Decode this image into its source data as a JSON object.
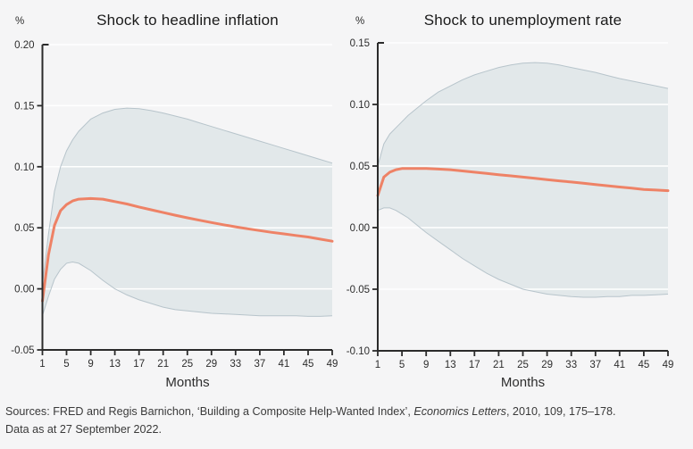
{
  "colors": {
    "background": "#f5f5f6",
    "band_fill": "#e2e8ea",
    "band_edge": "#b7c4cb",
    "line": "#ee8266",
    "axis": "#2b2b2b",
    "gridline": "#ffffff",
    "title_text": "#1a1a1a",
    "tick_text": "#2d2d2d",
    "footer_text": "#3a3a3a"
  },
  "footer": {
    "line1_prefix": "Sources: FRED and Regis Barnichon, ‘Building a Composite Help-Wanted Index’, ",
    "line1_italic": "Economics Letters",
    "line1_suffix": ", 2010, 109, 175–178.",
    "line2": "Data as at 27 September 2022."
  },
  "chart_data": [
    {
      "type": "line",
      "title": "Shock to headline inflation",
      "unit": "%",
      "xlabel": "Months",
      "xlim": [
        1,
        49
      ],
      "ylim": [
        -0.05,
        0.2
      ],
      "grid": true,
      "legend_position": "none",
      "xticks": [
        1,
        5,
        9,
        13,
        17,
        21,
        25,
        29,
        33,
        37,
        41,
        45,
        49
      ],
      "ytick_values": [
        0.2,
        0.15,
        0.1,
        0.05,
        0.0,
        -0.05
      ],
      "ytick_labels": [
        "0.20",
        "0.15",
        "0.10",
        "0.05",
        "0.00",
        "-0.05"
      ],
      "x": [
        1,
        2,
        3,
        4,
        5,
        6,
        7,
        9,
        11,
        13,
        15,
        17,
        19,
        21,
        23,
        25,
        27,
        29,
        31,
        33,
        35,
        37,
        39,
        41,
        43,
        45,
        47,
        49
      ],
      "series": [
        {
          "name": "median response",
          "values": [
            -0.01,
            0.028,
            0.052,
            0.064,
            0.069,
            0.072,
            0.0735,
            0.074,
            0.0735,
            0.0715,
            0.0695,
            0.067,
            0.0648,
            0.0625,
            0.0603,
            0.0582,
            0.0562,
            0.0543,
            0.0525,
            0.0508,
            0.0492,
            0.0477,
            0.0463,
            0.045,
            0.0437,
            0.0425,
            0.0407,
            0.039
          ]
        },
        {
          "name": "upper band",
          "values": [
            0.004,
            0.045,
            0.08,
            0.1,
            0.113,
            0.122,
            0.129,
            0.139,
            0.144,
            0.147,
            0.148,
            0.1475,
            0.146,
            0.144,
            0.1415,
            0.139,
            0.136,
            0.133,
            0.13,
            0.127,
            0.124,
            0.121,
            0.118,
            0.115,
            0.112,
            0.109,
            0.106,
            0.103
          ]
        },
        {
          "name": "lower band",
          "values": [
            -0.022,
            -0.006,
            0.008,
            0.016,
            0.021,
            0.022,
            0.021,
            0.015,
            0.007,
            0.0,
            -0.005,
            -0.009,
            -0.012,
            -0.015,
            -0.017,
            -0.018,
            -0.019,
            -0.02,
            -0.0205,
            -0.021,
            -0.0215,
            -0.022,
            -0.022,
            -0.022,
            -0.022,
            -0.0225,
            -0.0225,
            -0.022
          ]
        }
      ]
    },
    {
      "type": "line",
      "title": "Shock to unemployment rate",
      "unit": "%",
      "xlabel": "Months",
      "xlim": [
        1,
        49
      ],
      "ylim": [
        -0.1,
        0.15
      ],
      "grid": true,
      "legend_position": "none",
      "xticks": [
        1,
        5,
        9,
        13,
        17,
        21,
        25,
        29,
        33,
        37,
        41,
        45,
        49
      ],
      "ytick_values": [
        0.15,
        0.1,
        0.05,
        0.0,
        -0.05,
        -0.1
      ],
      "ytick_labels": [
        "0.15",
        "0.10",
        "0.05",
        "0.00",
        "-0.05",
        "-0.10"
      ],
      "x": [
        1,
        2,
        3,
        4,
        5,
        6,
        7,
        9,
        11,
        13,
        15,
        17,
        19,
        21,
        23,
        25,
        27,
        29,
        31,
        33,
        35,
        37,
        39,
        41,
        43,
        45,
        47,
        49
      ],
      "series": [
        {
          "name": "median response",
          "values": [
            0.026,
            0.041,
            0.045,
            0.047,
            0.048,
            0.048,
            0.048,
            0.048,
            0.0475,
            0.047,
            0.046,
            0.045,
            0.044,
            0.043,
            0.042,
            0.041,
            0.04,
            0.039,
            0.038,
            0.037,
            0.036,
            0.035,
            0.034,
            0.033,
            0.032,
            0.031,
            0.0305,
            0.03
          ]
        },
        {
          "name": "upper band",
          "values": [
            0.05,
            0.068,
            0.076,
            0.081,
            0.086,
            0.091,
            0.095,
            0.103,
            0.11,
            0.115,
            0.12,
            0.124,
            0.127,
            0.13,
            0.132,
            0.1335,
            0.134,
            0.1335,
            0.132,
            0.13,
            0.128,
            0.126,
            0.1235,
            0.121,
            0.119,
            0.117,
            0.115,
            0.113
          ]
        },
        {
          "name": "lower band",
          "values": [
            0.014,
            0.016,
            0.016,
            0.014,
            0.011,
            0.008,
            0.004,
            -0.004,
            -0.011,
            -0.018,
            -0.025,
            -0.031,
            -0.037,
            -0.042,
            -0.046,
            -0.05,
            -0.052,
            -0.054,
            -0.055,
            -0.056,
            -0.0565,
            -0.0565,
            -0.056,
            -0.056,
            -0.055,
            -0.055,
            -0.0545,
            -0.054
          ]
        }
      ]
    }
  ]
}
